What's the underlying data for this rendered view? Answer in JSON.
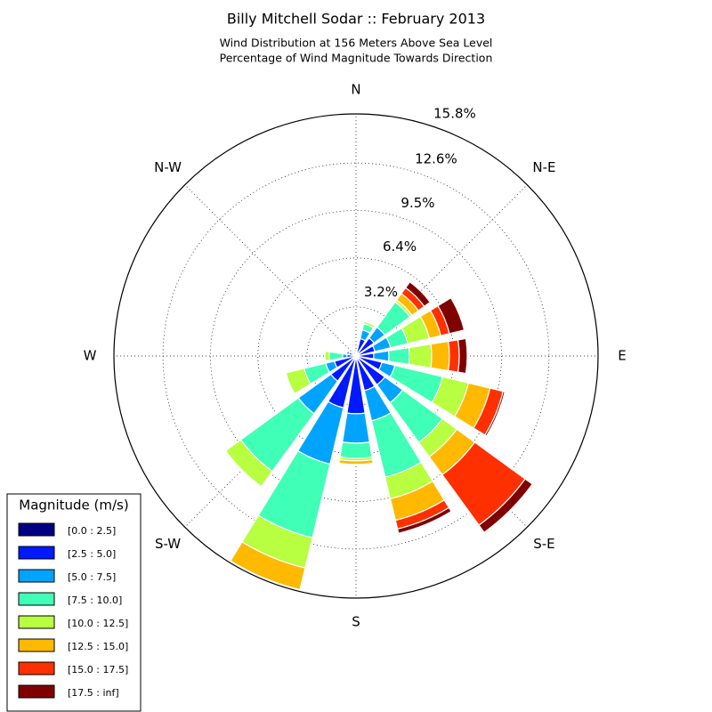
{
  "chart_data": {
    "type": "windrose",
    "title": "Billy Mitchell Sodar :: February 2013",
    "subtitle": [
      "Wind Distribution at 156 Meters Above Sea Level",
      "Percentage of Wind Magnitude Towards Direction"
    ],
    "categories": [
      "N",
      null,
      "N-E",
      null,
      "E",
      null,
      "S-E",
      null,
      "S",
      null,
      "S-W",
      null,
      "W",
      null,
      "N-W",
      null
    ],
    "rlim": [
      0,
      15.8
    ],
    "rticks": [
      {
        "value": 3.2,
        "label": "3.2%"
      },
      {
        "value": 6.4,
        "label": "6.4%"
      },
      {
        "value": 9.5,
        "label": "9.5%"
      },
      {
        "value": 12.6,
        "label": "12.6%"
      },
      {
        "value": 15.8,
        "label": "15.8%"
      }
    ],
    "grid": true,
    "legend_title": "Magnitude (m/s)",
    "legend_position": "lower left",
    "series": [
      {
        "name": "[0.0 : 2.5]",
        "color": "#000080",
        "values": [
          0.12,
          0.12,
          0.17,
          0.17,
          0.17,
          0.17,
          0.17,
          0.17,
          0.17,
          0.17,
          0.17,
          0.17,
          0.12,
          0.12,
          0.12,
          0.12
        ]
      },
      {
        "name": "[2.5 : 5.0]",
        "color": "#0019ff",
        "values": [
          0.17,
          1.05,
          1.28,
          1.1,
          0.99,
          1.57,
          2.15,
          2.15,
          3.6,
          3.31,
          1.86,
          1.28,
          0.47,
          0.35,
          0.17,
          0.17
        ]
      },
      {
        "name": "[5.0 : 7.5]",
        "color": "#00a4ff",
        "values": [
          0.12,
          0.58,
          0.87,
          1.05,
          0.99,
          0.87,
          1.45,
          2.03,
          1.92,
          3.78,
          2.62,
          0.58,
          0.29,
          0.17,
          0,
          0.06
        ]
      },
      {
        "name": "[7.5 : 10.0]",
        "color": "#40ffb7",
        "values": [
          0,
          0.41,
          2.03,
          1.16,
          1.34,
          3.2,
          3.2,
          3.78,
          0.99,
          4.94,
          4.65,
          1.45,
          0.87,
          0,
          0,
          0
        ]
      },
      {
        "name": "[10.0 : 12.5]",
        "color": "#b7ff40",
        "values": [
          0,
          0.17,
          0.17,
          1.45,
          1.45,
          1.74,
          1.16,
          1.45,
          0.17,
          2.03,
          1.22,
          1.22,
          0.29,
          0,
          0,
          0
        ]
      },
      {
        "name": "[12.5 : 15.0]",
        "color": "#ffb900",
        "values": [
          0,
          0.06,
          0.52,
          0.76,
          1.16,
          1.45,
          1.45,
          1.45,
          0.23,
          1.45,
          0,
          0,
          0,
          0,
          0,
          0
        ]
      },
      {
        "name": "[15.0 : 17.5]",
        "color": "#ff3000",
        "values": [
          0,
          0,
          0.47,
          0.58,
          0.64,
          0.87,
          4.07,
          0.58,
          0,
          0,
          0,
          0,
          0,
          0,
          0,
          0
        ]
      },
      {
        "name": "[17.5 : inf]",
        "color": "#800000",
        "values": [
          0,
          0,
          0.47,
          0.99,
          0.52,
          0.12,
          0.58,
          0.29,
          0,
          0,
          0,
          0,
          0,
          0,
          0,
          0
        ]
      }
    ]
  }
}
